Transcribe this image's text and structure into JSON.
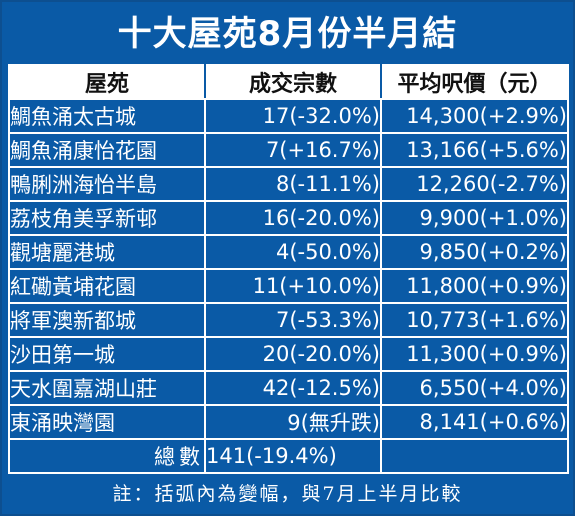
{
  "chart_data": {
    "type": "table",
    "title": "十大屋苑8月份半月結",
    "columns": [
      "屋苑",
      "成交宗數",
      "平均呎價（元）"
    ],
    "rows": [
      {
        "name": "鯛魚涌太古城",
        "deals": "17(-32.0%)",
        "price": "14,300(+2.9%)"
      },
      {
        "name": "鯛魚涌康怡花園",
        "deals": "7(+16.7%)",
        "price": "13,166(+5.6%)"
      },
      {
        "name": "鴨脷洲海怡半島",
        "deals": "8(-11.1%)",
        "price": "12,260(-2.7%)"
      },
      {
        "name": "荔枝角美孚新邨",
        "deals": "16(-20.0%)",
        "price": "9,900(+1.0%)"
      },
      {
        "name": "觀塘麗港城",
        "deals": "4(-50.0%)",
        "price": "9,850(+0.2%)"
      },
      {
        "name": "紅磡黃埔花園",
        "deals": "11(+10.0%)",
        "price": "11,800(+0.9%)"
      },
      {
        "name": "將軍澳新都城",
        "deals": "7(-53.3%)",
        "price": "10,773(+1.6%)"
      },
      {
        "name": "沙田第一城",
        "deals": "20(-20.0%)",
        "price": "11,300(+0.9%)"
      },
      {
        "name": "天水圍嘉湖山莊",
        "deals": "42(-12.5%)",
        "price": "6,550(+4.0%)"
      },
      {
        "name": "東涌映灣園",
        "deals": "9(無升跌)",
        "price": "8,141(+0.6%)"
      }
    ],
    "total": {
      "label": "總數",
      "deals": "141(-19.4%)",
      "price": ""
    },
    "footnote": "註：括弧內為變幅，與7月上半月比較"
  },
  "colors": {
    "background": "#0a5aa6",
    "header_background": "#ffffff",
    "total_row_background": "#8c8c8c",
    "text": "#ffffff"
  }
}
